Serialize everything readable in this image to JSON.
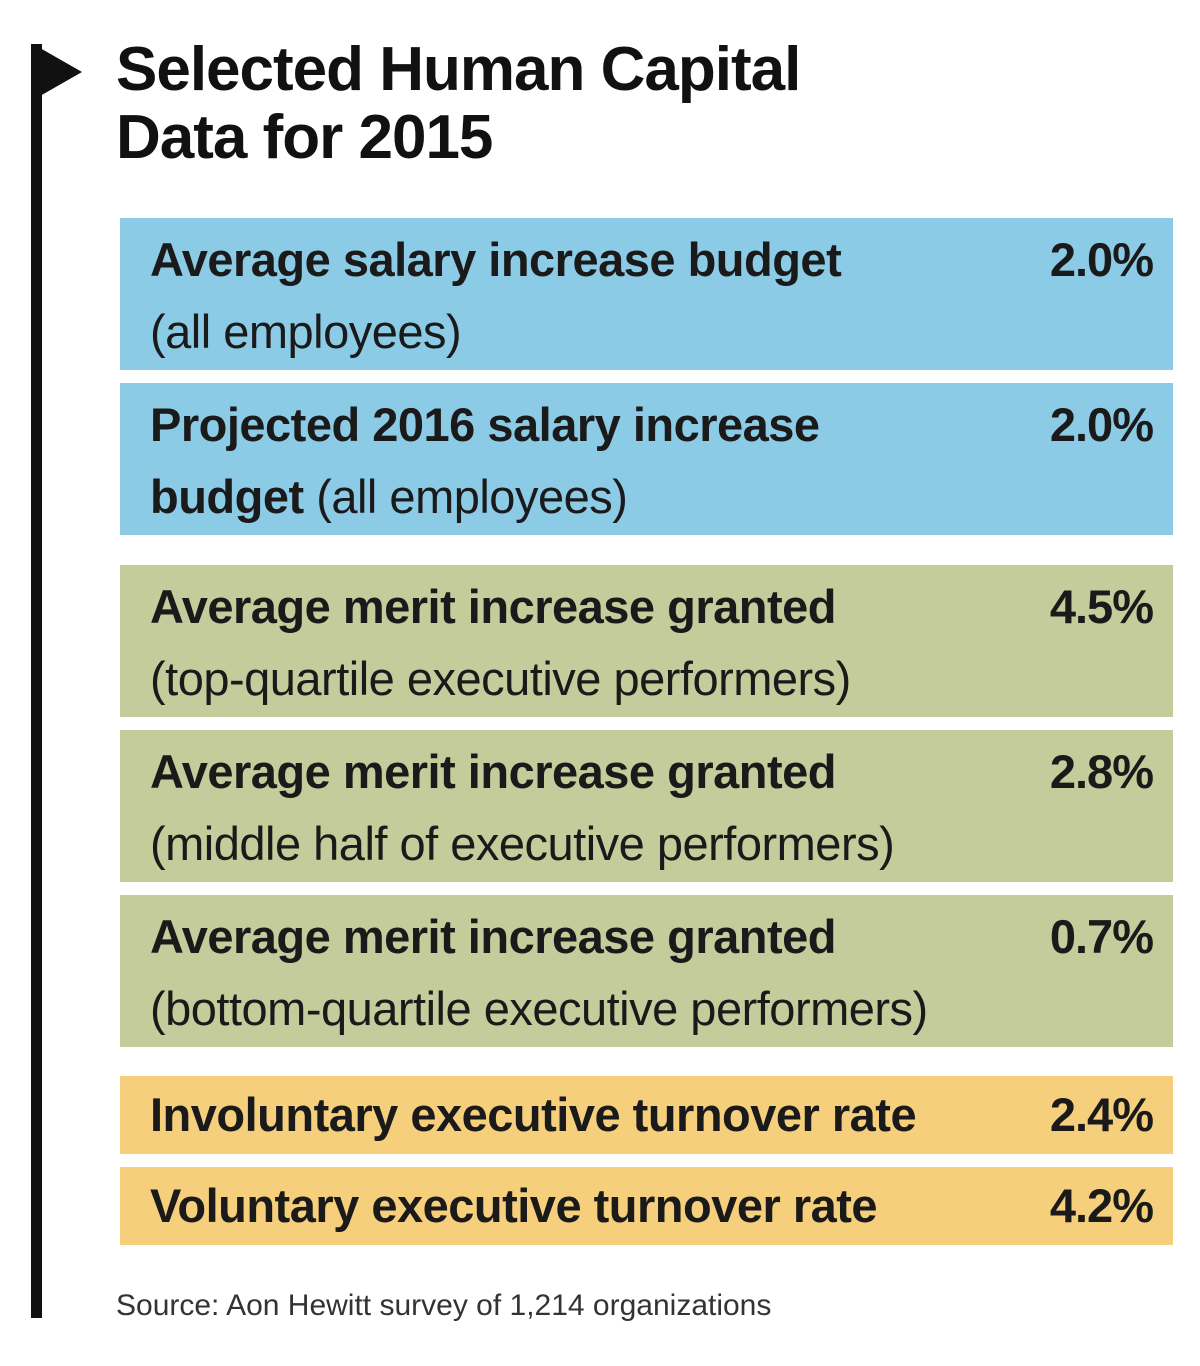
{
  "chart_data": {
    "type": "table",
    "title_lines": [
      "Selected Human Capital",
      "Data for 2015"
    ],
    "rows": [
      {
        "label_strong": "Average salary increase budget",
        "label_rest": "(all employees)",
        "inline": false,
        "value": 2.0,
        "value_label": "2.0%",
        "group": "salary",
        "color": "#8ccbe6"
      },
      {
        "label_strong": "Projected 2016 salary increase budget",
        "label_rest": "(all employees)",
        "inline": true,
        "value": 2.0,
        "value_label": "2.0%",
        "group": "salary",
        "color": "#8ccbe6"
      },
      {
        "label_strong": "Average merit increase granted",
        "label_rest": "(top-quartile executive performers)",
        "inline": false,
        "value": 4.5,
        "value_label": "4.5%",
        "group": "merit",
        "color": "#c3cc9a"
      },
      {
        "label_strong": "Average merit increase granted",
        "label_rest": "(middle half of executive performers)",
        "inline": false,
        "value": 2.8,
        "value_label": "2.8%",
        "group": "merit",
        "color": "#c3cc9a"
      },
      {
        "label_strong": "Average merit increase granted",
        "label_rest": "(bottom-quartile executive performers)",
        "inline": false,
        "value": 0.7,
        "value_label": "0.7%",
        "group": "merit",
        "color": "#c3cc9a"
      },
      {
        "label_strong": "Involuntary executive turnover rate",
        "label_rest": "",
        "inline": false,
        "value": 2.4,
        "value_label": "2.4%",
        "group": "turnover",
        "color": "#f5cf7c"
      },
      {
        "label_strong": "Voluntary executive turnover rate",
        "label_rest": "",
        "inline": false,
        "value": 4.2,
        "value_label": "4.2%",
        "group": "turnover",
        "color": "#f5cf7c"
      }
    ],
    "source": "Source: Aon Hewitt survey of 1,214 organizations"
  }
}
